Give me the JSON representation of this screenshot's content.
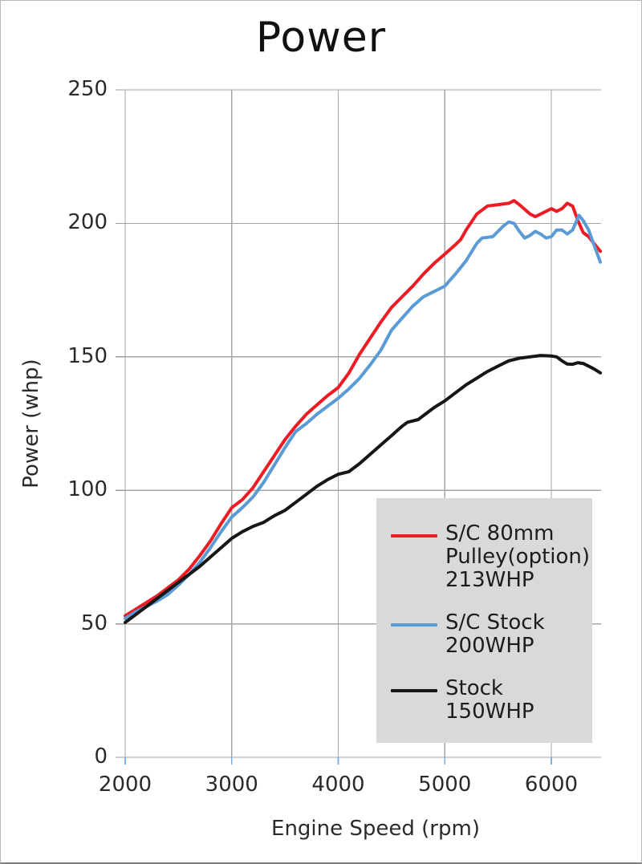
{
  "title": "Power",
  "axes": {
    "x_title": "Engine Speed (rpm)",
    "y_title": "Power (whp)"
  },
  "colors": {
    "grid": "#a6a6a6",
    "axis": "#9a9a9a",
    "x_subtick": "#7fb0e4",
    "legend_bg": "#d9d9d9",
    "series_red": "#ed1c24",
    "series_blue": "#5b9bd5",
    "series_black": "#161616"
  },
  "legend": {
    "entries": [
      {
        "label": "S/C 80mm\nPulley(option)\n213WHP",
        "color": "#ed1c24"
      },
      {
        "label": "S/C Stock\n200WHP",
        "color": "#5b9bd5"
      },
      {
        "label": "Stock\n150WHP",
        "color": "#161616"
      }
    ]
  },
  "chart_data": {
    "type": "line",
    "title": "Power",
    "xlabel": "Engine Speed (rpm)",
    "ylabel": "Power (whp)",
    "xlim": [
      2000,
      6467
    ],
    "ylim": [
      0,
      250
    ],
    "grid": true,
    "legend_position": "inside-bottom-right",
    "x_ticks": [
      2000,
      3000,
      4000,
      5000,
      6000
    ],
    "x_tick_labels": [
      "2000",
      "3000",
      "4000",
      "5000",
      "6000"
    ],
    "y_ticks": [
      0,
      50,
      100,
      150,
      200,
      250
    ],
    "y_tick_labels": [
      "0",
      "50",
      "100",
      "150",
      "200",
      "250"
    ],
    "series": [
      {
        "name": "S/C 80mm Pulley(option) 213WHP",
        "color": "#ed1c24",
        "width": 4,
        "points": [
          [
            2000,
            53
          ],
          [
            2100,
            55.5
          ],
          [
            2200,
            58
          ],
          [
            2300,
            60.5
          ],
          [
            2400,
            63.5
          ],
          [
            2500,
            66.5
          ],
          [
            2600,
            70.5
          ],
          [
            2700,
            75.5
          ],
          [
            2800,
            81
          ],
          [
            2900,
            87.5
          ],
          [
            3000,
            93.5
          ],
          [
            3100,
            96.5
          ],
          [
            3200,
            101
          ],
          [
            3300,
            107
          ],
          [
            3400,
            113
          ],
          [
            3500,
            119
          ],
          [
            3600,
            124
          ],
          [
            3700,
            128.5
          ],
          [
            3800,
            132
          ],
          [
            3900,
            135.5
          ],
          [
            4000,
            138.5
          ],
          [
            4100,
            144
          ],
          [
            4200,
            151
          ],
          [
            4300,
            157
          ],
          [
            4400,
            163
          ],
          [
            4500,
            168.5
          ],
          [
            4600,
            172.5
          ],
          [
            4700,
            176.5
          ],
          [
            4800,
            181
          ],
          [
            4900,
            185
          ],
          [
            5000,
            188.5
          ],
          [
            5100,
            192
          ],
          [
            5150,
            194
          ],
          [
            5200,
            197.5
          ],
          [
            5300,
            203.5
          ],
          [
            5400,
            206.5
          ],
          [
            5500,
            207
          ],
          [
            5600,
            207.5
          ],
          [
            5650,
            208.5
          ],
          [
            5700,
            207
          ],
          [
            5800,
            203.5
          ],
          [
            5850,
            202.5
          ],
          [
            5900,
            203.5
          ],
          [
            6000,
            205.5
          ],
          [
            6050,
            204.5
          ],
          [
            6100,
            205.5
          ],
          [
            6150,
            207.5
          ],
          [
            6200,
            206.5
          ],
          [
            6250,
            201
          ],
          [
            6300,
            196.5
          ],
          [
            6350,
            195
          ],
          [
            6400,
            192.5
          ],
          [
            6460,
            189.5
          ]
        ]
      },
      {
        "name": "S/C Stock 200WHP",
        "color": "#5b9bd5",
        "width": 4,
        "points": [
          [
            2000,
            52
          ],
          [
            2100,
            54.5
          ],
          [
            2200,
            56.5
          ],
          [
            2300,
            58.5
          ],
          [
            2400,
            61
          ],
          [
            2500,
            64.5
          ],
          [
            2600,
            68.5
          ],
          [
            2700,
            73
          ],
          [
            2800,
            78.5
          ],
          [
            2900,
            84.5
          ],
          [
            3000,
            90
          ],
          [
            3100,
            93.5
          ],
          [
            3200,
            97.5
          ],
          [
            3300,
            103
          ],
          [
            3400,
            109.5
          ],
          [
            3500,
            116
          ],
          [
            3600,
            122
          ],
          [
            3700,
            125
          ],
          [
            3800,
            128.5
          ],
          [
            3900,
            131.5
          ],
          [
            4000,
            134.5
          ],
          [
            4100,
            138
          ],
          [
            4200,
            142
          ],
          [
            4300,
            147
          ],
          [
            4400,
            152.5
          ],
          [
            4500,
            160
          ],
          [
            4600,
            164.5
          ],
          [
            4700,
            169
          ],
          [
            4800,
            172.5
          ],
          [
            4900,
            174.5
          ],
          [
            5000,
            176.5
          ],
          [
            5100,
            181
          ],
          [
            5200,
            186
          ],
          [
            5300,
            192.5
          ],
          [
            5350,
            194.5
          ],
          [
            5450,
            195
          ],
          [
            5550,
            199
          ],
          [
            5600,
            200.5
          ],
          [
            5650,
            200
          ],
          [
            5700,
            197
          ],
          [
            5750,
            194.5
          ],
          [
            5800,
            195.5
          ],
          [
            5850,
            197
          ],
          [
            5900,
            196
          ],
          [
            5950,
            194.5
          ],
          [
            6000,
            195
          ],
          [
            6050,
            197.5
          ],
          [
            6100,
            197.5
          ],
          [
            6150,
            196
          ],
          [
            6200,
            197.5
          ],
          [
            6260,
            203
          ],
          [
            6300,
            201
          ],
          [
            6350,
            197.5
          ],
          [
            6400,
            192
          ],
          [
            6460,
            185.5
          ]
        ]
      },
      {
        "name": "Stock 150WHP",
        "color": "#161616",
        "width": 4,
        "points": [
          [
            2000,
            50.5
          ],
          [
            2100,
            53.5
          ],
          [
            2200,
            56.5
          ],
          [
            2300,
            59.5
          ],
          [
            2400,
            62.5
          ],
          [
            2500,
            65.5
          ],
          [
            2600,
            68.5
          ],
          [
            2700,
            71.5
          ],
          [
            2800,
            75
          ],
          [
            2900,
            78.5
          ],
          [
            3000,
            82
          ],
          [
            3100,
            84.5
          ],
          [
            3200,
            86.5
          ],
          [
            3300,
            88
          ],
          [
            3400,
            90.5
          ],
          [
            3500,
            92.5
          ],
          [
            3600,
            95.5
          ],
          [
            3700,
            98.5
          ],
          [
            3800,
            101.5
          ],
          [
            3900,
            104
          ],
          [
            4000,
            106
          ],
          [
            4100,
            107
          ],
          [
            4200,
            110
          ],
          [
            4300,
            113.5
          ],
          [
            4400,
            117
          ],
          [
            4500,
            120.5
          ],
          [
            4600,
            124
          ],
          [
            4650,
            125.5
          ],
          [
            4750,
            126.5
          ],
          [
            4800,
            128
          ],
          [
            4900,
            131
          ],
          [
            5000,
            133.5
          ],
          [
            5100,
            136.5
          ],
          [
            5200,
            139.5
          ],
          [
            5300,
            142
          ],
          [
            5400,
            144.5
          ],
          [
            5500,
            146.5
          ],
          [
            5600,
            148.5
          ],
          [
            5700,
            149.5
          ],
          [
            5800,
            150
          ],
          [
            5900,
            150.5
          ],
          [
            6000,
            150.3
          ],
          [
            6050,
            150
          ],
          [
            6100,
            148.5
          ],
          [
            6150,
            147.3
          ],
          [
            6200,
            147.2
          ],
          [
            6250,
            147.8
          ],
          [
            6300,
            147.5
          ],
          [
            6350,
            146.5
          ],
          [
            6400,
            145.5
          ],
          [
            6460,
            144
          ]
        ]
      }
    ]
  }
}
